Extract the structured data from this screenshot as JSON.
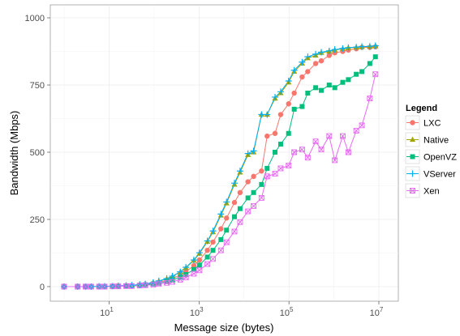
{
  "chart_data": {
    "type": "line",
    "title": "",
    "xlabel": "Message size (bytes)",
    "ylabel": "Bandwidth (Mbps)",
    "x_scale": "log10",
    "xlim": [
      1,
      10000000
    ],
    "ylim": [
      0,
      1000
    ],
    "x_ticks": [
      {
        "value": 10,
        "base": "10",
        "exp": "1"
      },
      {
        "value": 1000,
        "base": "10",
        "exp": "3"
      },
      {
        "value": 100000,
        "base": "10",
        "exp": "5"
      },
      {
        "value": 10000000,
        "base": "10",
        "exp": "7"
      }
    ],
    "y_ticks": [
      {
        "value": 0,
        "label": "0"
      },
      {
        "value": 250,
        "label": "250"
      },
      {
        "value": 500,
        "label": "500"
      },
      {
        "value": 750,
        "label": "750"
      },
      {
        "value": 1000,
        "label": "1000"
      }
    ],
    "grid": true,
    "legend": {
      "title": "Legend",
      "position": "right"
    },
    "series": [
      {
        "name": "LXC",
        "color": "#F8766D",
        "marker": "circle",
        "x": [
          1,
          2,
          3,
          4,
          6,
          8,
          12,
          16,
          24,
          32,
          48,
          64,
          96,
          128,
          192,
          256,
          384,
          512,
          768,
          1024,
          1536,
          2048,
          3072,
          4096,
          6144,
          8192,
          12288,
          16384,
          24576,
          32768,
          49152,
          65536,
          98304,
          131072,
          196608,
          262144,
          393216,
          524288,
          786432,
          1048576,
          1572864,
          2097152,
          3145728,
          4194304,
          6291456,
          8388608
        ],
        "y": [
          0,
          0,
          0,
          0,
          0,
          1,
          1,
          2,
          3,
          4,
          6,
          8,
          12,
          16,
          23,
          30,
          43,
          56,
          78,
          99,
          135,
          166,
          215,
          255,
          313,
          350,
          390,
          410,
          430,
          560,
          570,
          640,
          680,
          720,
          780,
          800,
          830,
          840,
          860,
          870,
          875,
          880,
          885,
          890,
          890,
          892
        ]
      },
      {
        "name": "Native",
        "color": "#A3A500",
        "marker": "triangle",
        "x": [
          1,
          2,
          3,
          4,
          6,
          8,
          12,
          16,
          24,
          32,
          48,
          64,
          96,
          128,
          192,
          256,
          384,
          512,
          768,
          1024,
          1536,
          2048,
          3072,
          4096,
          6144,
          8192,
          12288,
          16384,
          24576,
          32768,
          49152,
          65536,
          98304,
          131072,
          196608,
          262144,
          393216,
          524288,
          786432,
          1048576,
          1572864,
          2097152,
          3145728,
          4194304,
          6291456,
          8388608
        ],
        "y": [
          0,
          0,
          0,
          0,
          1,
          1,
          2,
          2,
          4,
          5,
          8,
          10,
          15,
          20,
          29,
          38,
          54,
          70,
          97,
          123,
          167,
          203,
          265,
          310,
          380,
          425,
          490,
          500,
          640,
          640,
          700,
          720,
          760,
          800,
          830,
          850,
          860,
          870,
          875,
          880,
          885,
          888,
          890,
          892,
          893,
          895
        ]
      },
      {
        "name": "OpenVZ",
        "color": "#00BF7D",
        "marker": "square",
        "x": [
          1,
          2,
          3,
          4,
          6,
          8,
          12,
          16,
          24,
          32,
          48,
          64,
          96,
          128,
          192,
          256,
          384,
          512,
          768,
          1024,
          1536,
          2048,
          3072,
          4096,
          6144,
          8192,
          12288,
          16384,
          24576,
          32768,
          49152,
          65536,
          98304,
          131072,
          196608,
          262144,
          393216,
          524288,
          786432,
          1048576,
          1572864,
          2097152,
          3145728,
          4194304,
          6291456,
          8388608
        ],
        "y": [
          0,
          0,
          0,
          0,
          0,
          1,
          1,
          2,
          3,
          3,
          5,
          7,
          10,
          13,
          19,
          25,
          35,
          45,
          64,
          80,
          110,
          135,
          175,
          210,
          260,
          290,
          330,
          350,
          380,
          440,
          500,
          530,
          570,
          660,
          670,
          720,
          740,
          730,
          750,
          740,
          760,
          770,
          790,
          800,
          830,
          855
        ]
      },
      {
        "name": "VServer",
        "color": "#00B0F6",
        "marker": "plus",
        "x": [
          1,
          2,
          3,
          4,
          6,
          8,
          12,
          16,
          24,
          32,
          48,
          64,
          96,
          128,
          192,
          256,
          384,
          512,
          768,
          1024,
          1536,
          2048,
          3072,
          4096,
          6144,
          8192,
          12288,
          16384,
          24576,
          32768,
          49152,
          65536,
          98304,
          131072,
          196608,
          262144,
          393216,
          524288,
          786432,
          1048576,
          1572864,
          2097152,
          3145728,
          4194304,
          6291456,
          8388608
        ],
        "y": [
          0,
          0,
          0,
          0,
          1,
          1,
          2,
          3,
          4,
          5,
          8,
          10,
          15,
          21,
          30,
          39,
          55,
          72,
          99,
          126,
          170,
          207,
          270,
          315,
          385,
          430,
          495,
          505,
          640,
          640,
          705,
          725,
          765,
          805,
          835,
          855,
          865,
          872,
          877,
          882,
          886,
          889,
          891,
          893,
          894,
          896
        ]
      },
      {
        "name": "Xen",
        "color": "#E76BF3",
        "marker": "boxx",
        "x": [
          1,
          2,
          3,
          4,
          6,
          8,
          12,
          16,
          24,
          32,
          48,
          64,
          96,
          128,
          192,
          256,
          384,
          512,
          768,
          1024,
          1536,
          2048,
          3072,
          4096,
          6144,
          8192,
          12288,
          16384,
          24576,
          32768,
          49152,
          65536,
          98304,
          131072,
          196608,
          262144,
          393216,
          524288,
          786432,
          1048576,
          1572864,
          2097152,
          3145728,
          4194304,
          6291456,
          8388608
        ],
        "y": [
          0,
          0,
          0,
          0,
          0,
          0,
          1,
          1,
          2,
          2,
          4,
          5,
          7,
          10,
          14,
          18,
          26,
          34,
          48,
          61,
          84,
          103,
          135,
          165,
          205,
          240,
          280,
          300,
          330,
          410,
          420,
          440,
          450,
          500,
          510,
          480,
          540,
          510,
          560,
          470,
          560,
          500,
          580,
          600,
          700,
          790
        ]
      }
    ]
  }
}
